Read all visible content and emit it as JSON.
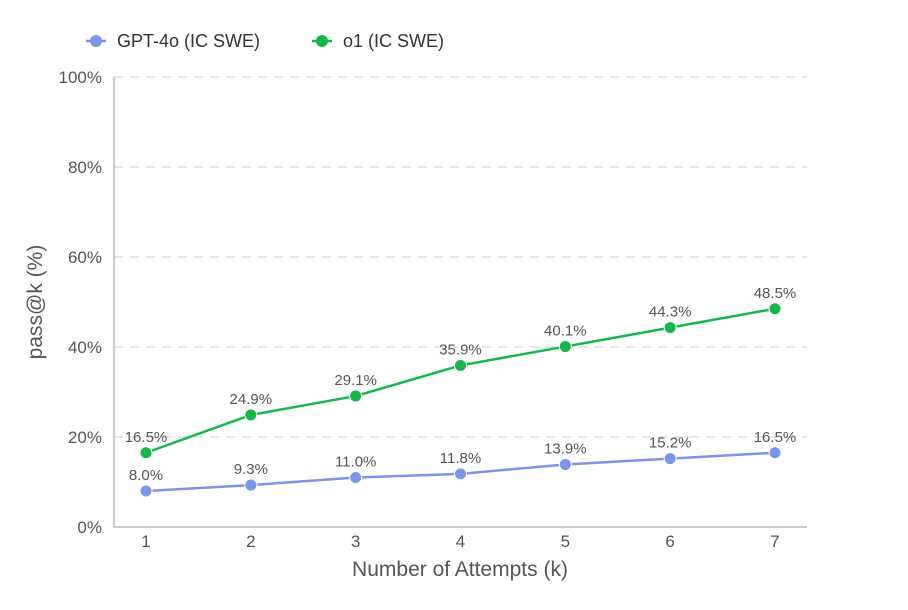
{
  "chart_data": {
    "type": "line",
    "title": "",
    "xlabel": "Number of Attempts (k)",
    "ylabel": "pass@k (%)",
    "x": [
      1,
      2,
      3,
      4,
      5,
      6,
      7
    ],
    "ylim": [
      0,
      100
    ],
    "yticks": [
      0,
      20,
      40,
      60,
      80,
      100
    ],
    "ytick_labels": [
      "0%",
      "20%",
      "40%",
      "60%",
      "80%",
      "100%"
    ],
    "grid": true,
    "legend_position": "top-left",
    "series": [
      {
        "name": "GPT-4o (IC SWE)",
        "color": "#7b96e8",
        "values": [
          8.0,
          9.3,
          11.0,
          11.8,
          13.9,
          15.2,
          16.5
        ],
        "labels": [
          "8.0%",
          "9.3%",
          "11.0%",
          "11.8%",
          "13.9%",
          "15.2%",
          "16.5%"
        ]
      },
      {
        "name": "o1 (IC SWE)",
        "color": "#14b84a",
        "values": [
          16.5,
          24.9,
          29.1,
          35.9,
          40.1,
          44.3,
          48.5
        ],
        "labels": [
          "16.5%",
          "24.9%",
          "29.1%",
          "35.9%",
          "40.1%",
          "44.3%",
          "48.5%"
        ]
      }
    ]
  }
}
